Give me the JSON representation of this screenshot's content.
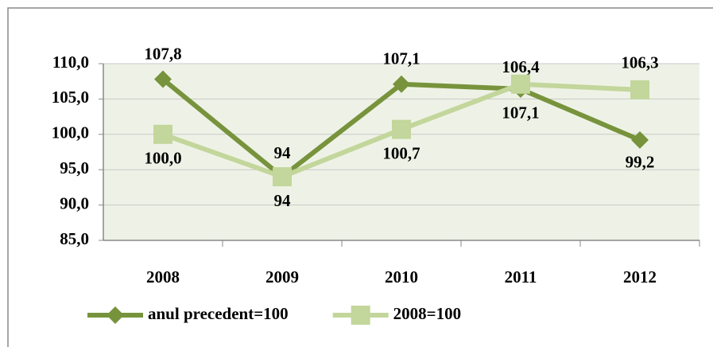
{
  "chart_data": {
    "type": "line",
    "categories": [
      "2008",
      "2009",
      "2010",
      "2011",
      "2012"
    ],
    "series": [
      {
        "name": "anul precedent=100",
        "color": "#77933c",
        "marker": "diamond",
        "values": [
          107.8,
          94,
          107.1,
          106.4,
          99.2
        ],
        "value_labels": [
          "107,8",
          "94",
          "107,1",
          "106,4",
          "99,2"
        ]
      },
      {
        "name": "2008=100",
        "color": "#c3d69b",
        "marker": "square",
        "values": [
          100.0,
          94,
          100.7,
          107.1,
          106.3
        ],
        "value_labels": [
          "100,0",
          "94",
          "100,7",
          "107,1",
          "106,3"
        ]
      }
    ],
    "ylim": [
      85,
      110
    ],
    "yticks": [
      {
        "value": 85,
        "label": "85,0"
      },
      {
        "value": 90,
        "label": "90,0"
      },
      {
        "value": 95,
        "label": "95,0"
      },
      {
        "value": 100,
        "label": "100,0"
      },
      {
        "value": 105,
        "label": "105,0"
      },
      {
        "value": 110,
        "label": "110,0"
      }
    ],
    "grid": true,
    "legend": "bottom"
  }
}
